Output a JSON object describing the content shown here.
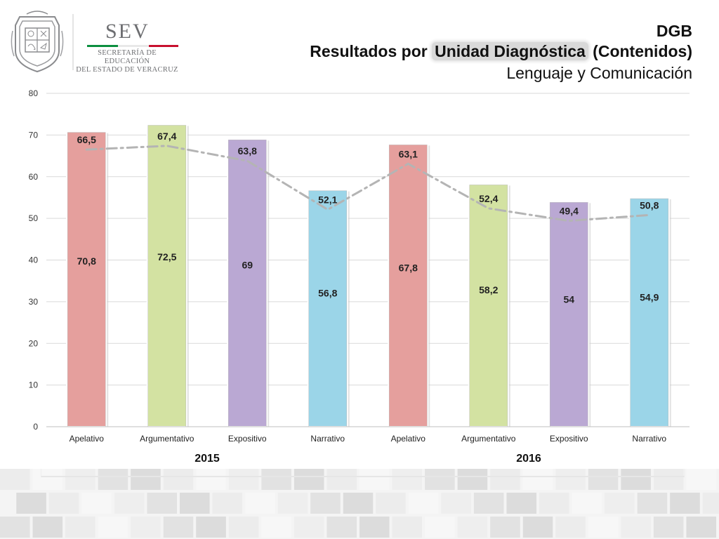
{
  "header": {
    "logo_name": "SEV",
    "logo_subtitle_line1": "SECRETARÍA DE EDUCACIÓN",
    "logo_subtitle_line2": "DEL ESTADO DE VERACRUZ",
    "title_line1": "DGB",
    "title_line2_pre": "Resultados por ",
    "title_line2_highlight": "Unidad Diagnóstica",
    "title_line2_post": " (Contenidos)",
    "title_line3": "Lenguaje y Comunicación"
  },
  "chart_data": {
    "type": "bar",
    "categories": [
      "Apelativo",
      "Argumentativo",
      "Expositivo",
      "Narrativo",
      "Apelativo",
      "Argumentativo",
      "Expositivo",
      "Narrativo"
    ],
    "groups": [
      {
        "label": "2015",
        "start": 0,
        "end": 3
      },
      {
        "label": "2016",
        "start": 4,
        "end": 7
      }
    ],
    "series": [
      {
        "values": [
          70.8,
          72.5,
          69,
          56.8,
          67.8,
          58.2,
          54,
          54.9
        ],
        "labels": [
          "70,8",
          "72,5",
          "69",
          "56,8",
          "67,8",
          "58,2",
          "54",
          "54,9"
        ]
      },
      {
        "type": "line",
        "style": "dash-dot",
        "values": [
          66.5,
          67.4,
          63.8,
          52.1,
          63.1,
          52.4,
          49.4,
          50.8
        ],
        "labels": [
          "66,5",
          "67,4",
          "63,8",
          "52,1",
          "63,1",
          "52,4",
          "49,4",
          "50,8"
        ]
      }
    ],
    "ylim": [
      0,
      80
    ],
    "yticks": [
      0,
      10,
      20,
      30,
      40,
      50,
      60,
      70,
      80
    ],
    "grid": true,
    "bar_colors": [
      "#e59f9d",
      "#d3e2a2",
      "#baa8d3",
      "#9bd5e8",
      "#e59f9d",
      "#d3e2a2",
      "#baa8d3",
      "#9bd5e8"
    ],
    "line_color": "#b4b4b4"
  }
}
